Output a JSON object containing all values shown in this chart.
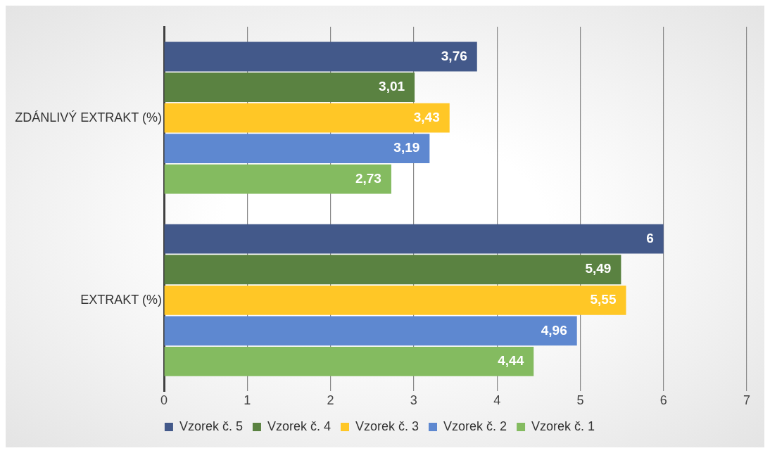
{
  "chart_data": {
    "type": "bar",
    "orientation": "horizontal",
    "categories": [
      "ZDÁNLIVÝ EXTRAKT (%)",
      "EXTRAKT (%)"
    ],
    "series": [
      {
        "name": "Vzorek č. 5",
        "color": "#43598a",
        "values": [
          3.76,
          6
        ],
        "value_labels": [
          "3,76",
          "6"
        ]
      },
      {
        "name": "Vzorek č. 4",
        "color": "#5a8241",
        "values": [
          3.01,
          5.49
        ],
        "value_labels": [
          "3,01",
          "5,49"
        ]
      },
      {
        "name": "Vzorek č. 3",
        "color": "#ffc726",
        "values": [
          3.43,
          5.55
        ],
        "value_labels": [
          "3,43",
          "5,55"
        ]
      },
      {
        "name": "Vzorek č. 2",
        "color": "#5e88d0",
        "values": [
          3.19,
          4.96
        ],
        "value_labels": [
          "3,19",
          "4,96"
        ]
      },
      {
        "name": "Vzorek č. 1",
        "color": "#84bb60",
        "values": [
          2.73,
          4.44
        ],
        "value_labels": [
          "2,73",
          "4,44"
        ]
      }
    ],
    "xlim": [
      0,
      7
    ],
    "xticks": [
      0,
      1,
      2,
      3,
      4,
      5,
      6,
      7
    ],
    "grid": "x",
    "legend": "bottom"
  }
}
